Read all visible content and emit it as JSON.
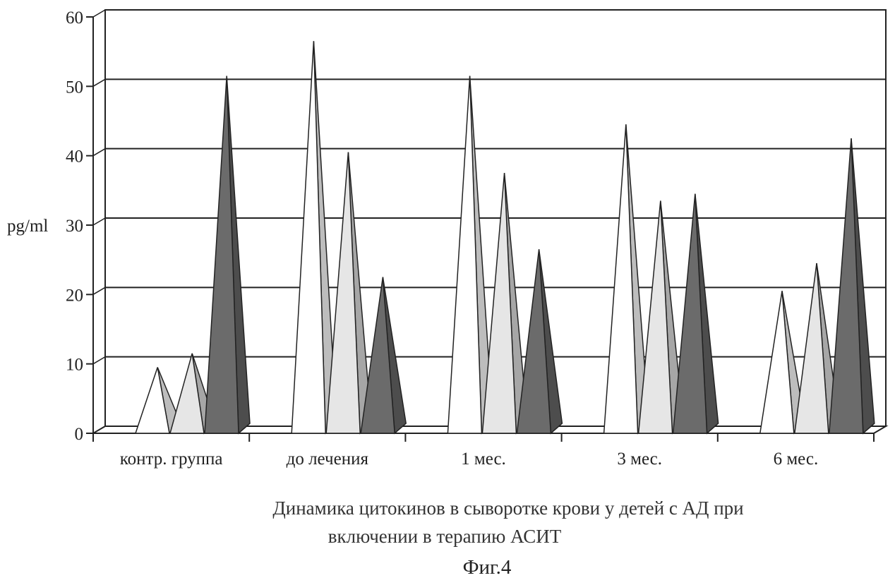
{
  "chart_data": {
    "type": "bar",
    "style": "3d-cone",
    "ylabel": "pg/ml",
    "ylim": [
      0,
      60
    ],
    "yticks": [
      0,
      10,
      20,
      30,
      40,
      50,
      60
    ],
    "grid": true,
    "categories": [
      "контр. группа",
      "до лечения",
      "1 мес.",
      "3 мес.",
      "6 мес."
    ],
    "series": [
      {
        "values": [
          9,
          56,
          51,
          44,
          20
        ],
        "color": "#ffffff"
      },
      {
        "values": [
          11,
          40,
          37,
          33,
          24
        ],
        "color": "#e6e6e6"
      },
      {
        "values": [
          51,
          22,
          26,
          34,
          42
        ],
        "color": "#6b6b6b"
      }
    ]
  },
  "caption": {
    "line1": "Динамика цитокинов в сыворотке крови у детей с АД при",
    "line2": "включении в терапию АСИТ"
  },
  "figure_label": "Фиг.4"
}
